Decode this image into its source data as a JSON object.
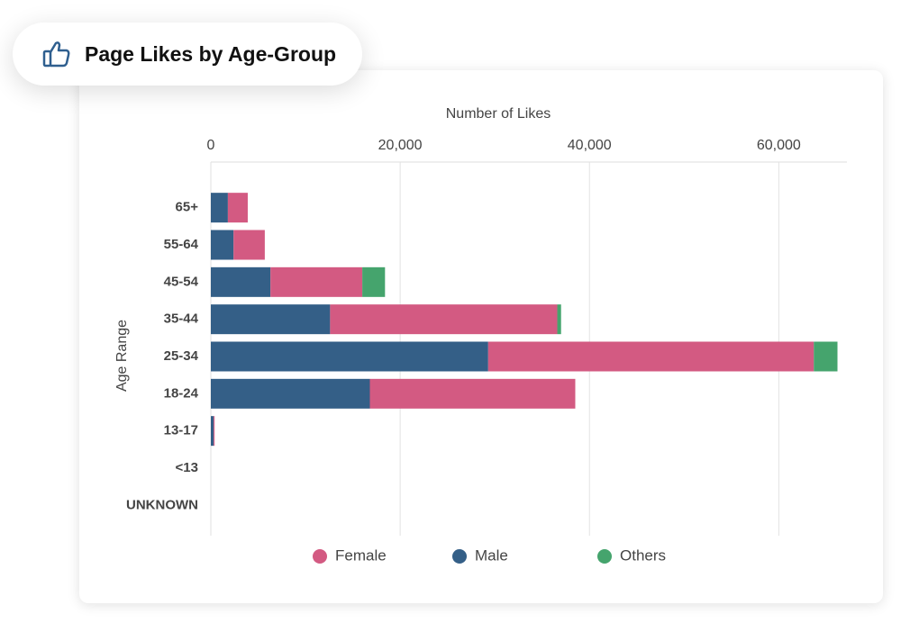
{
  "header": {
    "title": "Page Likes by Age-Group"
  },
  "chart_data": {
    "type": "stacked-bar-horizontal",
    "x_label": "Number of Likes",
    "y_label": "Age Range",
    "categories": [
      "65+",
      "55-64",
      "45-54",
      "35-44",
      "25-34",
      "18-24",
      "13-17",
      "<13",
      "UNKNOWN"
    ],
    "series": [
      {
        "name": "Male",
        "color": "#345f87",
        "values": [
          1800,
          2400,
          6300,
          12600,
          29300,
          16800,
          300,
          0,
          0
        ]
      },
      {
        "name": "Female",
        "color": "#d35a82",
        "values": [
          2100,
          3300,
          9700,
          24000,
          34400,
          21700,
          100,
          0,
          0
        ]
      },
      {
        "name": "Others",
        "color": "#45a46d",
        "values": [
          0,
          0,
          2400,
          400,
          2500,
          0,
          0,
          0,
          0
        ]
      }
    ],
    "legend_order": [
      "Female",
      "Male",
      "Others"
    ],
    "xlim": [
      0,
      67200
    ],
    "xticks": [
      0,
      {
        "value": 20000,
        "label": "20,000"
      },
      {
        "value": 40000,
        "label": "40,000"
      },
      {
        "value": 60000,
        "label": "60,000"
      }
    ],
    "grid": true
  }
}
